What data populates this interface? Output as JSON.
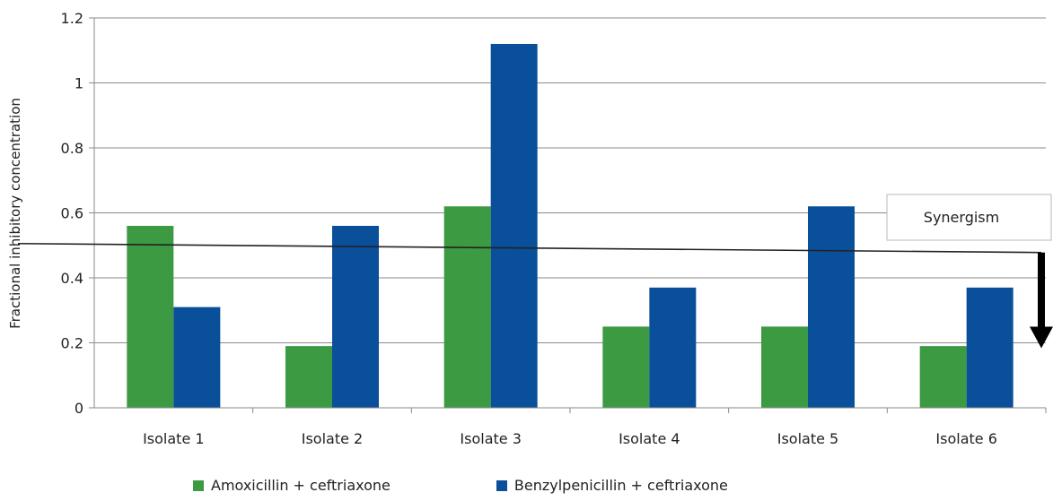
{
  "chart_data": {
    "type": "bar",
    "title": "",
    "xlabel": "",
    "ylabel": "Fractional inhibitory concentration",
    "ylim": [
      0,
      1.2
    ],
    "yticks": [
      "0",
      "0.2",
      "0.4",
      "0.6",
      "0.8",
      "1",
      "1.2"
    ],
    "categories": [
      "Isolate 1",
      "Isolate 2",
      "Isolate 3",
      "Isolate 4",
      "Isolate 5",
      "Isolate 6"
    ],
    "series": [
      {
        "name": "Amoxicillin + ceftriaxone",
        "color": "#3c9a43",
        "values": [
          0.56,
          0.19,
          0.62,
          0.25,
          0.25,
          0.19
        ]
      },
      {
        "name": "Benzylpenicillin + ceftriaxone",
        "color": "#0a4f9a",
        "values": [
          0.31,
          0.56,
          1.12,
          0.37,
          0.62,
          0.37
        ]
      }
    ],
    "threshold": 0.5,
    "annotation": {
      "label": "Synergism",
      "arrow_direction": "down",
      "arrow_target": 0.2
    },
    "grid": true,
    "legend_position": "bottom"
  }
}
